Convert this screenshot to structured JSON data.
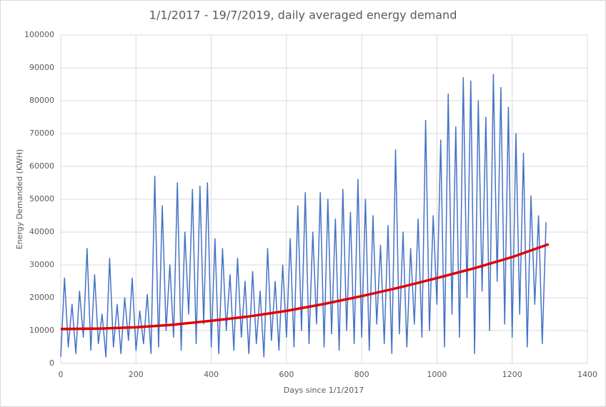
{
  "chart_data": {
    "type": "line",
    "title": "1/1/2017 - 19/7/2019, daily averaged energy demand",
    "xlabel": "Days since 1/1/2017",
    "ylabel": "Energy Demanded  (KWH)",
    "xlim": [
      0,
      1400
    ],
    "xticks": [
      0,
      200,
      400,
      600,
      800,
      1000,
      1200,
      1400
    ],
    "ylim": [
      0,
      100000
    ],
    "yticks": [
      0,
      10000,
      20000,
      30000,
      40000,
      50000,
      60000,
      70000,
      80000,
      90000,
      100000
    ],
    "grid": true,
    "series": [
      {
        "color": "#4472c4",
        "width": 1.5,
        "x": [
          0,
          10,
          20,
          30,
          40,
          50,
          60,
          70,
          80,
          90,
          100,
          110,
          120,
          130,
          140,
          150,
          160,
          170,
          180,
          190,
          200,
          210,
          220,
          230,
          240,
          250,
          260,
          270,
          280,
          290,
          300,
          310,
          320,
          330,
          340,
          350,
          360,
          370,
          380,
          390,
          400,
          410,
          420,
          430,
          440,
          450,
          460,
          470,
          480,
          490,
          500,
          510,
          520,
          530,
          540,
          550,
          560,
          570,
          580,
          590,
          600,
          610,
          620,
          630,
          640,
          650,
          660,
          670,
          680,
          690,
          700,
          710,
          720,
          730,
          740,
          750,
          760,
          770,
          780,
          790,
          800,
          810,
          820,
          830,
          840,
          850,
          860,
          870,
          880,
          890,
          900,
          910,
          920,
          930,
          940,
          950,
          960,
          970,
          980,
          990,
          1000,
          1010,
          1020,
          1030,
          1040,
          1050,
          1060,
          1070,
          1080,
          1090,
          1100,
          1110,
          1120,
          1130,
          1140,
          1150,
          1160,
          1170,
          1180,
          1190,
          1200,
          1210,
          1220,
          1230,
          1240,
          1250,
          1260,
          1270,
          1280,
          1290
        ],
        "values": [
          2000,
          26000,
          5000,
          18000,
          3000,
          22000,
          8000,
          35000,
          4000,
          27000,
          6000,
          15000,
          2000,
          32000,
          5000,
          18000,
          3000,
          20000,
          7000,
          26000,
          4000,
          16000,
          6000,
          21000,
          3000,
          57000,
          5000,
          48000,
          10000,
          30000,
          8000,
          55000,
          4000,
          40000,
          15000,
          53000,
          6000,
          54000,
          12000,
          55000,
          5000,
          38000,
          3000,
          35000,
          10000,
          27000,
          4000,
          32000,
          8000,
          25000,
          3000,
          28000,
          6000,
          22000,
          2000,
          35000,
          7000,
          25000,
          4000,
          30000,
          8000,
          38000,
          5000,
          48000,
          10000,
          52000,
          6000,
          40000,
          12000,
          52000,
          5000,
          50000,
          9000,
          44000,
          4000,
          53000,
          10000,
          46000,
          6000,
          56000,
          8000,
          50000,
          4000,
          45000,
          12000,
          36000,
          6000,
          42000,
          3000,
          65000,
          9000,
          40000,
          5000,
          35000,
          12000,
          44000,
          8000,
          74000,
          10000,
          45000,
          18000,
          68000,
          5000,
          82000,
          15000,
          72000,
          8000,
          87000,
          20000,
          86000,
          3000,
          80000,
          22000,
          75000,
          10000,
          88000,
          25000,
          84000,
          12000,
          78000,
          8000,
          70000,
          15000,
          64000,
          5000,
          51000,
          18000,
          45000,
          6000,
          43000
        ]
      },
      {
        "color": "#e00000",
        "width": 3.5,
        "x": [
          0,
          100,
          200,
          300,
          400,
          500,
          600,
          700,
          800,
          900,
          1000,
          1100,
          1200,
          1297
        ],
        "values": [
          10500,
          10600,
          11000,
          11800,
          13000,
          14300,
          16000,
          18100,
          20500,
          23100,
          26000,
          29000,
          32400,
          36300
        ]
      }
    ]
  }
}
